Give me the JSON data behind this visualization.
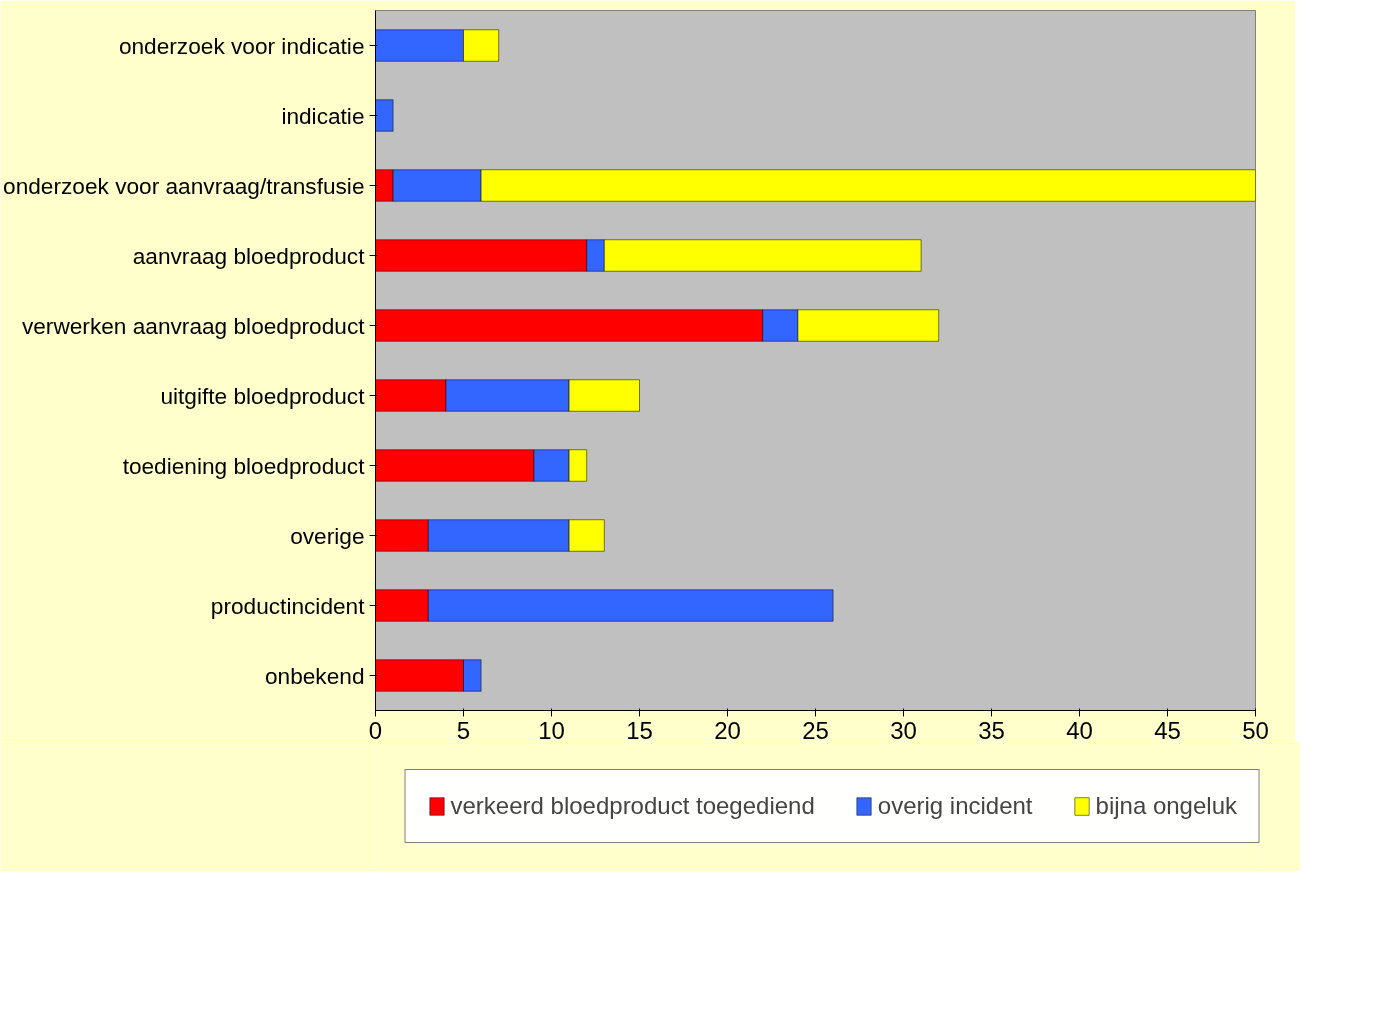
{
  "chart_data": {
    "type": "bar",
    "orientation": "horizontal",
    "stacked": true,
    "categories": [
      "onderzoek voor indicatie",
      "indicatie",
      "onderzoek voor aanvraag/transfusie",
      "aanvraag bloedproduct",
      "verwerken aanvraag bloedproduct",
      "uitgifte bloedproduct",
      "toediening bloedproduct",
      "overige",
      "productincident",
      "onbekend"
    ],
    "series": [
      {
        "name": "verkeerd bloedproduct toegediend",
        "color": "#ff0000",
        "values": [
          0,
          0,
          1,
          12,
          22,
          4,
          9,
          3,
          3,
          5
        ]
      },
      {
        "name": "overig incident",
        "color": "#3366ff",
        "values": [
          5,
          1,
          5,
          1,
          2,
          7,
          2,
          8,
          23,
          1
        ]
      },
      {
        "name": "bijna ongeluk",
        "color": "#ffff00",
        "values": [
          2,
          0,
          44,
          18,
          8,
          4,
          1,
          2,
          0,
          0
        ]
      }
    ],
    "xlim": [
      0,
      50
    ],
    "xticks": [
      0,
      5,
      10,
      15,
      20,
      25,
      30,
      35,
      40,
      45,
      50
    ],
    "grid": false,
    "legend": "bottom"
  }
}
